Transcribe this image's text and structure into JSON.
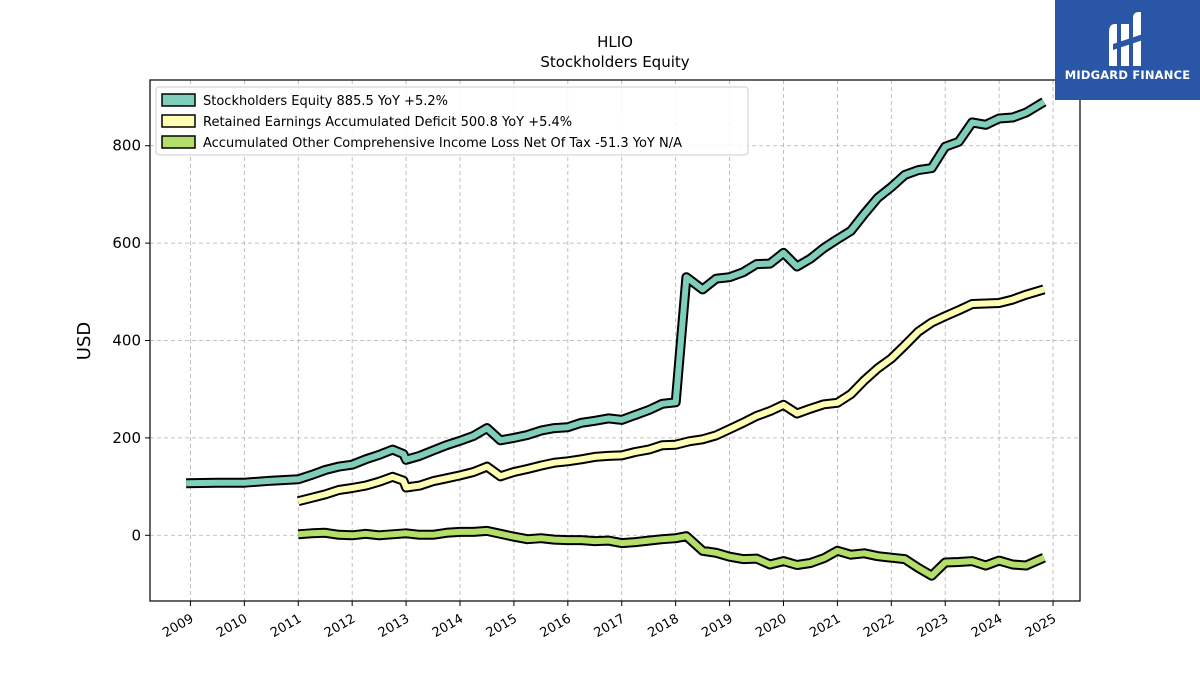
{
  "chart_data": {
    "type": "line",
    "title": "HLIO",
    "subtitle": "Stockholders  Equity",
    "ylabel": "USD",
    "xlabel": "",
    "ylim": [
      -135,
      935
    ],
    "xlim": [
      2008.25,
      2025.5
    ],
    "y_ticks": [
      "0",
      "200",
      "400",
      "600",
      "800"
    ],
    "y_tick_values": [
      0,
      200,
      400,
      600,
      800
    ],
    "x_ticks": [
      "2009",
      "2010",
      "2011",
      "2012",
      "2013",
      "2014",
      "2015",
      "2016",
      "2017",
      "2018",
      "2019",
      "2020",
      "2021",
      "2022",
      "2023",
      "2024",
      "2025"
    ],
    "x_tick_values": [
      2009,
      2010,
      2011,
      2012,
      2013,
      2014,
      2015,
      2016,
      2017,
      2018,
      2019,
      2020,
      2021,
      2022,
      2023,
      2024,
      2025
    ],
    "grid": true,
    "legend_position": "top-left",
    "series": [
      {
        "name": "Stockholders Equity  885.5 YoY +5.2%",
        "color": "#7fcdbb",
        "points": [
          [
            2008.92,
            107
          ],
          [
            2009.5,
            108
          ],
          [
            2010.0,
            108
          ],
          [
            2010.5,
            112
          ],
          [
            2011.0,
            115
          ],
          [
            2011.25,
            124
          ],
          [
            2011.5,
            134
          ],
          [
            2011.75,
            141
          ],
          [
            2012.0,
            145
          ],
          [
            2012.25,
            156
          ],
          [
            2012.5,
            165
          ],
          [
            2012.75,
            176
          ],
          [
            2012.95,
            167
          ],
          [
            2013.0,
            155
          ],
          [
            2013.25,
            163
          ],
          [
            2013.5,
            174
          ],
          [
            2013.75,
            185
          ],
          [
            2014.0,
            194
          ],
          [
            2014.25,
            204
          ],
          [
            2014.5,
            220
          ],
          [
            2014.75,
            195
          ],
          [
            2015.0,
            200
          ],
          [
            2015.25,
            206
          ],
          [
            2015.5,
            215
          ],
          [
            2015.75,
            220
          ],
          [
            2016.0,
            222
          ],
          [
            2016.25,
            231
          ],
          [
            2016.5,
            235
          ],
          [
            2016.75,
            240
          ],
          [
            2017.0,
            237
          ],
          [
            2017.25,
            247
          ],
          [
            2017.5,
            257
          ],
          [
            2017.75,
            270
          ],
          [
            2018.0,
            273
          ],
          [
            2018.2,
            530
          ],
          [
            2018.5,
            505
          ],
          [
            2018.75,
            527
          ],
          [
            2019.0,
            530
          ],
          [
            2019.25,
            540
          ],
          [
            2019.5,
            557
          ],
          [
            2019.75,
            558
          ],
          [
            2020.0,
            580
          ],
          [
            2020.25,
            552
          ],
          [
            2020.5,
            568
          ],
          [
            2020.75,
            590
          ],
          [
            2021.0,
            608
          ],
          [
            2021.25,
            625
          ],
          [
            2021.5,
            660
          ],
          [
            2021.75,
            693
          ],
          [
            2022.0,
            715
          ],
          [
            2022.25,
            740
          ],
          [
            2022.5,
            750
          ],
          [
            2022.75,
            754
          ],
          [
            2023.0,
            798
          ],
          [
            2023.25,
            808
          ],
          [
            2023.5,
            848
          ],
          [
            2023.75,
            843
          ],
          [
            2024.0,
            856
          ],
          [
            2024.25,
            858
          ],
          [
            2024.5,
            868
          ],
          [
            2024.83,
            890
          ]
        ]
      },
      {
        "name": "Retained Earnings Accumulated Deficit  500.8 YoY +5.4%",
        "color": "#ffffb3",
        "points": [
          [
            2011.0,
            70
          ],
          [
            2011.25,
            77
          ],
          [
            2011.5,
            84
          ],
          [
            2011.75,
            93
          ],
          [
            2012.0,
            97
          ],
          [
            2012.25,
            102
          ],
          [
            2012.5,
            110
          ],
          [
            2012.75,
            120
          ],
          [
            2012.95,
            112
          ],
          [
            2013.0,
            98
          ],
          [
            2013.25,
            102
          ],
          [
            2013.5,
            111
          ],
          [
            2013.75,
            117
          ],
          [
            2014.0,
            123
          ],
          [
            2014.25,
            130
          ],
          [
            2014.5,
            141
          ],
          [
            2014.75,
            121
          ],
          [
            2015.0,
            130
          ],
          [
            2015.25,
            136
          ],
          [
            2015.5,
            143
          ],
          [
            2015.75,
            149
          ],
          [
            2016.0,
            152
          ],
          [
            2016.25,
            156
          ],
          [
            2016.5,
            161
          ],
          [
            2016.75,
            163
          ],
          [
            2017.0,
            164
          ],
          [
            2017.25,
            171
          ],
          [
            2017.5,
            176
          ],
          [
            2017.75,
            185
          ],
          [
            2018.0,
            186
          ],
          [
            2018.25,
            193
          ],
          [
            2018.5,
            197
          ],
          [
            2018.75,
            205
          ],
          [
            2019.0,
            218
          ],
          [
            2019.25,
            231
          ],
          [
            2019.5,
            245
          ],
          [
            2019.75,
            255
          ],
          [
            2020.0,
            268
          ],
          [
            2020.25,
            250
          ],
          [
            2020.5,
            260
          ],
          [
            2020.75,
            269
          ],
          [
            2021.0,
            272
          ],
          [
            2021.25,
            290
          ],
          [
            2021.5,
            318
          ],
          [
            2021.75,
            343
          ],
          [
            2022.0,
            363
          ],
          [
            2022.25,
            390
          ],
          [
            2022.5,
            418
          ],
          [
            2022.75,
            437
          ],
          [
            2023.0,
            450
          ],
          [
            2023.25,
            462
          ],
          [
            2023.5,
            475
          ],
          [
            2023.75,
            476
          ],
          [
            2024.0,
            477
          ],
          [
            2024.25,
            484
          ],
          [
            2024.5,
            494
          ],
          [
            2024.83,
            505
          ]
        ]
      },
      {
        "name": "Accumulated Other Comprehensive Income Loss Net Of Tax  -51.3 YoY N/A",
        "color": "#b3de69",
        "points": [
          [
            2011.0,
            2
          ],
          [
            2011.25,
            4
          ],
          [
            2011.5,
            5
          ],
          [
            2011.75,
            1
          ],
          [
            2012.0,
            0
          ],
          [
            2012.25,
            3
          ],
          [
            2012.5,
            0
          ],
          [
            2012.75,
            2
          ],
          [
            2013.0,
            4
          ],
          [
            2013.25,
            1
          ],
          [
            2013.5,
            1
          ],
          [
            2013.75,
            5
          ],
          [
            2014.0,
            7
          ],
          [
            2014.25,
            7
          ],
          [
            2014.5,
            9
          ],
          [
            2014.75,
            3
          ],
          [
            2015.0,
            -3
          ],
          [
            2015.25,
            -8
          ],
          [
            2015.5,
            -6
          ],
          [
            2015.75,
            -9
          ],
          [
            2016.0,
            -10
          ],
          [
            2016.25,
            -10
          ],
          [
            2016.5,
            -12
          ],
          [
            2016.75,
            -11
          ],
          [
            2017.0,
            -16
          ],
          [
            2017.25,
            -14
          ],
          [
            2017.5,
            -11
          ],
          [
            2017.75,
            -8
          ],
          [
            2018.0,
            -6
          ],
          [
            2018.2,
            -2
          ],
          [
            2018.5,
            -32
          ],
          [
            2018.75,
            -36
          ],
          [
            2019.0,
            -44
          ],
          [
            2019.25,
            -49
          ],
          [
            2019.5,
            -48
          ],
          [
            2019.75,
            -60
          ],
          [
            2020.0,
            -53
          ],
          [
            2020.25,
            -61
          ],
          [
            2020.5,
            -57
          ],
          [
            2020.75,
            -47
          ],
          [
            2021.0,
            -32
          ],
          [
            2021.25,
            -40
          ],
          [
            2021.5,
            -37
          ],
          [
            2021.75,
            -43
          ],
          [
            2022.0,
            -46
          ],
          [
            2022.25,
            -49
          ],
          [
            2022.5,
            -67
          ],
          [
            2022.75,
            -83
          ],
          [
            2023.0,
            -56
          ],
          [
            2023.25,
            -55
          ],
          [
            2023.5,
            -53
          ],
          [
            2023.75,
            -62
          ],
          [
            2024.0,
            -52
          ],
          [
            2024.25,
            -60
          ],
          [
            2024.5,
            -62
          ],
          [
            2024.83,
            -46
          ]
        ]
      }
    ]
  },
  "logo": {
    "text": "MIDGARD FINANCE",
    "background": "#2a56a8"
  }
}
